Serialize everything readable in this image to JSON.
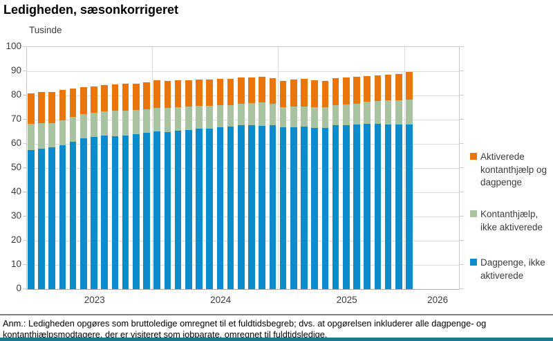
{
  "title": "Ledigheden, sæsonkorrigeret",
  "unit_label": "Tusinde",
  "note": "Anm.: Ledigheden opgøres som bruttoledige omregnet til et fuldtidsbegreb; dvs. at opgørelsen inkluderer alle dagpenge- og\nkontanthjælpsmodtagere, der er visiteret som jobparate, omregnet til fuldtidsledige.",
  "colors": {
    "dagpenge_blue": "#0d8ccd",
    "kontanthjaelp_green": "#a9c2a0",
    "aktiverede_orange": "#ea750b",
    "gridline": "#dcdcdc",
    "accent_bottom_teal": "#1d7a8a"
  },
  "legend": {
    "items": [
      {
        "label": "Aktiverede\nkontanthjælp og\ndagpenge",
        "color_key": "aktiverede_orange"
      },
      {
        "label": "Kontanthjælp,\nikke aktiverede",
        "color_key": "kontanthjaelp_green"
      },
      {
        "label": "Dagpenge, ikke\naktiverede",
        "color_key": "dagpenge_blue"
      }
    ]
  },
  "chart_data": {
    "type": "bar",
    "stacked": true,
    "title": "Ledigheden, sæsonkorrigeret",
    "ylabel": "Tusinde",
    "ylim": [
      0,
      100
    ],
    "y_ticks": [
      0,
      10,
      20,
      30,
      40,
      50,
      60,
      70,
      80,
      90,
      100
    ],
    "grid": "horizontal gridlines + vertical year separators",
    "legend_position": "right",
    "x_year_labels": [
      "2023",
      "2024",
      "2025",
      "2026"
    ],
    "months_per_year": 12,
    "x": [
      "2023-01",
      "2023-02",
      "2023-03",
      "2023-04",
      "2023-05",
      "2023-06",
      "2023-07",
      "2023-08",
      "2023-09",
      "2023-10",
      "2023-11",
      "2023-12",
      "2024-01",
      "2024-02",
      "2024-03",
      "2024-04",
      "2024-05",
      "2024-06",
      "2024-07",
      "2024-08",
      "2024-09",
      "2024-10",
      "2024-11",
      "2024-12",
      "2025-01",
      "2025-02",
      "2025-03",
      "2025-04",
      "2025-05",
      "2025-06",
      "2025-07",
      "2025-08",
      "2025-09",
      "2025-10",
      "2025-11",
      "2025-12",
      "2026-01"
    ],
    "series": [
      {
        "name": "Dagpenge, ikke aktiverede",
        "color_key": "dagpenge_blue",
        "values": [
          57.5,
          58.0,
          58.7,
          59.5,
          61.0,
          62.2,
          62.9,
          63.3,
          63.2,
          63.4,
          63.9,
          64.5,
          65.2,
          65.0,
          65.4,
          65.8,
          66.4,
          66.3,
          66.9,
          67.1,
          67.8,
          67.6,
          67.5,
          67.6,
          66.8,
          67.0,
          67.2,
          66.7,
          66.5,
          67.6,
          67.8,
          67.9,
          68.4,
          68.2,
          67.9,
          68.1,
          67.9
        ]
      },
      {
        "name": "Kontanthjælp, ikke aktiverede",
        "color_key": "kontanthjaelp_green",
        "values": [
          10.7,
          10.5,
          10.0,
          10.3,
          10.2,
          10.0,
          10.0,
          10.1,
          10.4,
          10.4,
          10.1,
          9.9,
          9.8,
          9.8,
          9.8,
          9.6,
          9.3,
          9.4,
          9.0,
          9.0,
          8.9,
          9.3,
          9.6,
          9.1,
          8.4,
          8.3,
          8.3,
          8.5,
          8.6,
          8.4,
          8.4,
          8.8,
          9.0,
          9.5,
          10.0,
          10.0,
          10.4
        ]
      },
      {
        "name": "Aktiverede kontanthjælp og dagpenge",
        "color_key": "aktiverede_orange",
        "values": [
          12.6,
          12.9,
          12.7,
          12.4,
          11.7,
          11.1,
          10.7,
          10.9,
          11.0,
          11.0,
          10.9,
          11.0,
          11.2,
          11.1,
          11.0,
          11.0,
          11.0,
          10.9,
          10.9,
          10.7,
          10.8,
          10.6,
          10.7,
          10.4,
          10.8,
          11.2,
          11.5,
          11.1,
          11.0,
          11.2,
          11.2,
          11.1,
          10.5,
          10.5,
          10.8,
          10.9,
          11.3
        ]
      }
    ]
  }
}
